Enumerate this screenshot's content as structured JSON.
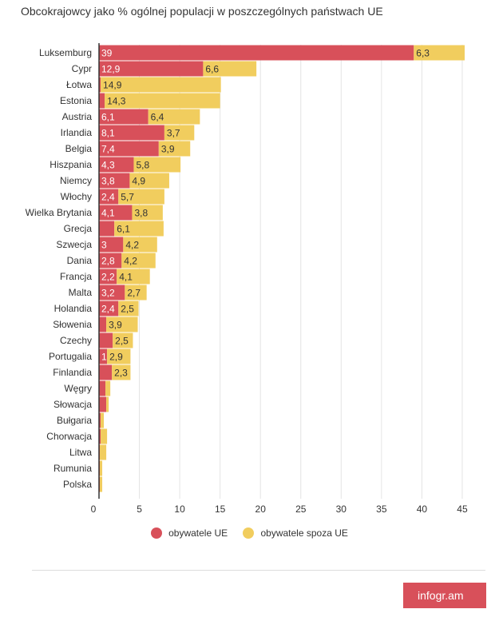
{
  "title": "Obcokrajowcy jako % ogólnej populacji w poszczególnych państwach UE",
  "colors": {
    "eu": "#d8505a",
    "non_eu": "#f1cd5e",
    "brand": "#d8505a"
  },
  "chart_data": {
    "type": "bar",
    "orientation": "horizontal",
    "stacked": true,
    "title": "Obcokrajowcy jako % ogólnej populacji w poszczególnych państwach UE",
    "categories": [
      "Luksemburg",
      "Cypr",
      "Łotwa",
      "Estonia",
      "Austria",
      "Irlandia",
      "Belgia",
      "Hiszpania",
      "Niemcy",
      "Włochy",
      "Wielka Brytania",
      "Grecja",
      "Szwecja",
      "Dania",
      "Francja",
      "Malta",
      "Holandia",
      "Słowenia",
      "Czechy",
      "Portugalia",
      "Finlandia",
      "Węgry",
      "Słowacja",
      "Bułgaria",
      "Chorwacja",
      "Litwa",
      "Rumunia",
      "Polska"
    ],
    "series": [
      {
        "name": "obywatele UE",
        "color": "#d8505a",
        "values": [
          39,
          12.9,
          0.2,
          0.7,
          6.1,
          8.1,
          7.4,
          4.3,
          3.8,
          2.4,
          4.1,
          1.9,
          3,
          2.8,
          2.2,
          3.2,
          2.4,
          0.9,
          1.7,
          1,
          1.6,
          0.8,
          0.9,
          0.2,
          0.2,
          0.1,
          0.1,
          0.1
        ],
        "labels": [
          "39",
          "12,9",
          "",
          "",
          "6,1",
          "8,1",
          "7,4",
          "4,3",
          "3,8",
          "2,4",
          "4,1",
          "",
          "3",
          "2,8",
          "2,2",
          "3,2",
          "2,4",
          "",
          "",
          "1",
          "",
          "",
          "",
          "",
          "",
          "",
          "",
          ""
        ]
      },
      {
        "name": "obywatele spoza UE",
        "color": "#f1cd5e",
        "values": [
          6.3,
          6.6,
          14.9,
          14.3,
          6.4,
          3.7,
          3.9,
          5.8,
          4.9,
          5.7,
          3.8,
          6.1,
          4.2,
          4.2,
          4.1,
          2.7,
          2.5,
          3.9,
          2.5,
          2.9,
          2.3,
          0.6,
          0.3,
          0.4,
          0.8,
          0.8,
          0.3,
          0.3
        ],
        "labels": [
          "6,3",
          "6,6",
          "14,9",
          "14,3",
          "6,4",
          "3,7",
          "3,9",
          "5,8",
          "4,9",
          "5,7",
          "3,8",
          "6,1",
          "4,2",
          "4,2",
          "4,1",
          "2,7",
          "2,5",
          "3,9",
          "2,5",
          "2,9",
          "2,3",
          "",
          "",
          "",
          "",
          "",
          "",
          ""
        ]
      }
    ],
    "x_ticks": [
      "0",
      "5",
      "10",
      "15",
      "20",
      "25",
      "30",
      "35",
      "40",
      "45"
    ],
    "xlim": [
      0,
      45
    ],
    "grid": true,
    "legend_position": "bottom"
  },
  "legend": [
    {
      "label": "obywatele UE"
    },
    {
      "label": "obywatele spoza UE"
    }
  ],
  "brand": {
    "label": "infogr.am"
  }
}
